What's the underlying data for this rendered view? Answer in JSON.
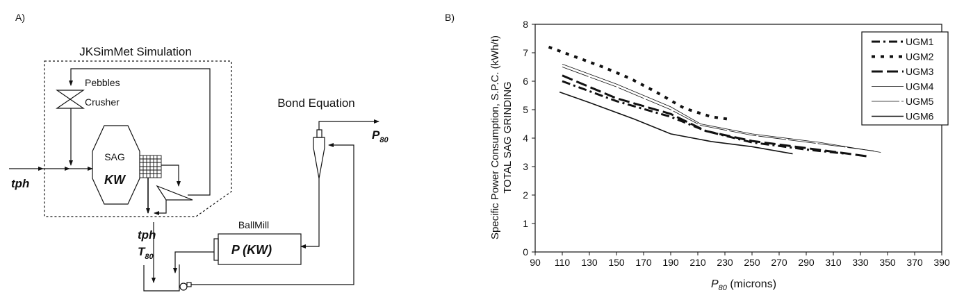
{
  "panel_a": {
    "label": "A)",
    "title": "JKSimMet Simulation",
    "pebbles": "Pebbles",
    "crusher": "Crusher",
    "sag": "SAG",
    "kw": "KW",
    "feed": "tph",
    "transfer_tph": "tph",
    "transfer_t": "T",
    "transfer_sub": "80",
    "ballmill": "BallMill",
    "power": "P (KW)",
    "bond": "Bond Equation",
    "product": "P",
    "product_sub": "80"
  },
  "chart_data": {
    "panel_label": "B)",
    "type": "line",
    "title": "",
    "xlabel_main": "P",
    "xlabel_sub": "80",
    "xlabel_rest": " (microns)",
    "ylabel_line1": "Specific Power Consumption, S.P.C. (kWh/t)",
    "ylabel_line2": "TOTAL SAG GRINDING",
    "xlim": [
      90,
      390
    ],
    "ylim": [
      0,
      8
    ],
    "xticks": [
      90,
      110,
      130,
      150,
      170,
      190,
      210,
      230,
      250,
      270,
      290,
      310,
      330,
      350,
      370,
      390
    ],
    "yticks": [
      0,
      1,
      2,
      3,
      4,
      5,
      6,
      7,
      8
    ],
    "legend_position": "top-right",
    "series": [
      {
        "name": "UGM1",
        "style": "dashdot",
        "x": [
          110,
          150,
          190,
          216,
          250,
          290,
          320
        ],
        "y": [
          6.0,
          5.3,
          4.75,
          4.25,
          3.85,
          3.6,
          3.45
        ]
      },
      {
        "name": "UGM2",
        "style": "dotted",
        "x": [
          100,
          120,
          140,
          160,
          180,
          200,
          220,
          235
        ],
        "y": [
          7.2,
          6.85,
          6.5,
          6.1,
          5.6,
          5.05,
          4.75,
          4.65
        ]
      },
      {
        "name": "UGM3",
        "style": "longdash",
        "x": [
          110,
          150,
          190,
          216,
          250,
          290,
          337
        ],
        "y": [
          6.2,
          5.4,
          4.85,
          4.25,
          3.9,
          3.65,
          3.35
        ]
      },
      {
        "name": "UGM4",
        "style": "thin",
        "x": [
          110,
          150,
          190,
          212,
          250,
          300,
          345
        ],
        "y": [
          6.6,
          5.9,
          5.1,
          4.5,
          4.15,
          3.85,
          3.5
        ]
      },
      {
        "name": "UGM5",
        "style": "thin-dash",
        "x": [
          110,
          150,
          190,
          212,
          250,
          300,
          340
        ],
        "y": [
          6.5,
          5.8,
          5.0,
          4.45,
          4.1,
          3.8,
          3.55
        ]
      },
      {
        "name": "UGM6",
        "style": "solid",
        "x": [
          108,
          130,
          163,
          190,
          220,
          250,
          280
        ],
        "y": [
          5.62,
          5.25,
          4.67,
          4.15,
          3.88,
          3.7,
          3.45
        ]
      }
    ]
  }
}
